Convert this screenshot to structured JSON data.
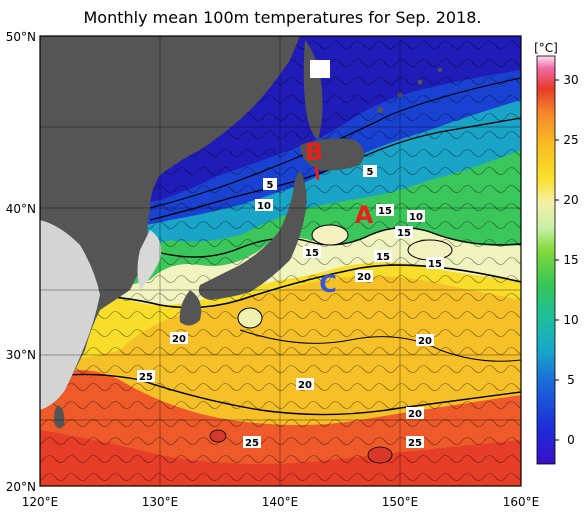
{
  "title": "Monthly mean 100m temperatures for Sep. 2018.",
  "lon_labels": [
    "120°E",
    "130°E",
    "140°E",
    "150°E",
    "160°E"
  ],
  "lat_labels": [
    "50°N",
    "40°N",
    "30°N",
    "20°N"
  ],
  "colorbar": {
    "unit": "[°C]",
    "ticks": [
      "30",
      "25",
      "20",
      "15",
      "10",
      "5",
      "0"
    ],
    "range": [
      -2,
      32
    ]
  },
  "contour_labels": [
    "5",
    "10",
    "5",
    "15",
    "10",
    "15",
    "15",
    "15",
    "20",
    "15",
    "20",
    "20",
    "20",
    "25",
    "20",
    "25",
    "25"
  ],
  "region_labels": {
    "A": {
      "text": "A",
      "color": "#e8201a"
    },
    "B": {
      "text": "B",
      "color": "#e8201a"
    },
    "C": {
      "text": "C",
      "color": "#3a54d8"
    }
  },
  "colors": {
    "land": "#525252",
    "land_light": "#d3d3d3",
    "warm": "#f7a22c",
    "hot": "#e9402a",
    "yellow": "#f6d316",
    "green": "#38c45a",
    "cyan": "#1aa6c9",
    "blue": "#1a3bd1",
    "deep_blue": "#1e1ab8"
  }
}
